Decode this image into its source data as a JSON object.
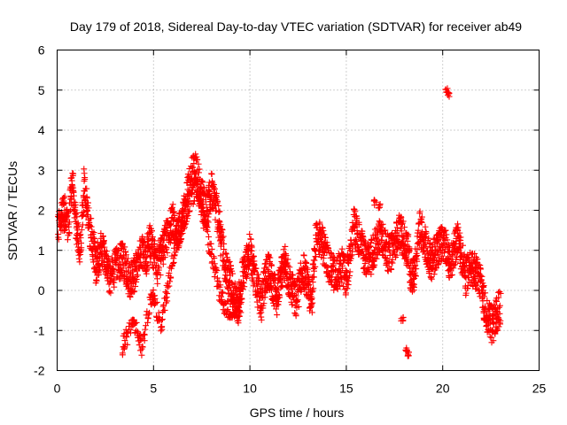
{
  "chart_data": {
    "type": "scatter",
    "title": "Day 179 of 2018, Sidereal Day-to-day VTEC variation (SDTVAR) for receiver ab49",
    "xlabel": "GPS time / hours",
    "ylabel": "SDTVAR / TECUs",
    "xlim": [
      0,
      25
    ],
    "ylim": [
      -2,
      6
    ],
    "x_ticks": [
      0,
      5,
      10,
      15,
      20,
      25
    ],
    "x_tick_labels": [
      "0",
      "5",
      "10",
      "15",
      "20",
      "25"
    ],
    "y_ticks": [
      -2,
      -1,
      0,
      1,
      2,
      3,
      4,
      5,
      6
    ],
    "y_tick_labels": [
      "-2",
      "-1",
      "0",
      "1",
      "2",
      "3",
      "4",
      "5",
      "6"
    ],
    "grid": true,
    "marker": "plus",
    "series_color": "#ff0000",
    "series": [
      {
        "name": "SDTVAR",
        "trace_x": [
          0.0,
          0.2,
          0.4,
          0.6,
          0.7,
          0.8,
          0.9,
          1.0,
          1.2,
          1.4,
          1.5,
          1.7,
          1.9,
          2.0,
          2.2,
          2.4,
          2.6,
          2.8,
          3.0,
          3.2,
          3.4,
          3.6,
          3.8,
          4.0,
          4.2,
          4.4,
          4.6,
          4.8,
          5.0,
          5.2,
          5.4,
          5.6,
          5.8,
          6.0,
          6.2,
          6.4,
          6.6,
          6.8,
          7.0,
          7.2,
          7.4,
          7.6,
          7.8,
          8.0,
          8.2,
          8.4,
          8.6,
          8.8,
          9.0,
          9.2,
          9.4,
          9.6,
          9.8,
          10.0,
          10.2,
          10.4,
          10.6,
          10.8,
          11.0,
          11.2,
          11.4,
          11.6,
          11.8,
          12.0,
          12.2,
          12.4,
          12.6,
          12.8,
          13.0,
          13.2,
          13.4,
          13.6,
          13.8,
          14.0,
          14.2,
          14.4,
          14.6,
          14.8,
          15.0,
          15.2,
          15.4,
          15.6,
          15.8,
          16.0,
          16.2,
          16.4,
          16.6,
          16.8,
          17.0,
          17.2,
          17.4,
          17.6,
          17.8,
          18.0,
          18.2,
          18.4,
          18.6,
          18.8,
          19.0,
          19.2,
          19.4,
          19.6,
          19.8,
          20.0,
          20.2,
          20.4,
          20.6,
          20.8,
          21.0,
          21.2,
          21.4,
          21.6,
          21.8,
          22.0,
          22.2,
          22.4,
          22.6,
          22.8,
          23.0
        ],
        "trace_y": [
          1.5,
          1.8,
          1.9,
          1.6,
          2.3,
          2.6,
          2.1,
          1.6,
          1.0,
          2.6,
          2.2,
          1.5,
          1.0,
          0.6,
          0.9,
          1.1,
          0.5,
          0.3,
          0.6,
          0.7,
          0.8,
          0.5,
          0.2,
          0.4,
          0.7,
          1.0,
          0.8,
          1.2,
          1.0,
          0.6,
          0.9,
          1.2,
          1.5,
          1.8,
          1.4,
          1.6,
          2.0,
          2.5,
          2.9,
          3.0,
          2.6,
          2.2,
          2.0,
          2.5,
          2.2,
          1.6,
          1.0,
          0.5,
          0.2,
          -0.2,
          -0.4,
          0.3,
          0.7,
          1.0,
          0.5,
          0.0,
          -0.3,
          0.3,
          0.5,
          0.1,
          -0.2,
          0.3,
          0.7,
          0.3,
          0.0,
          -0.3,
          0.2,
          0.5,
          0.1,
          -0.3,
          1.2,
          1.3,
          1.1,
          0.8,
          0.5,
          0.4,
          0.5,
          0.6,
          0.3,
          0.8,
          1.6,
          1.3,
          1.1,
          0.8,
          0.7,
          1.0,
          1.2,
          1.4,
          1.1,
          0.9,
          1.0,
          1.3,
          1.5,
          1.2,
          1.0,
          0.2,
          0.7,
          1.6,
          1.3,
          1.0,
          0.7,
          0.9,
          1.1,
          1.2,
          1.0,
          0.6,
          1.0,
          1.4,
          0.8,
          0.3,
          0.7,
          0.5,
          0.4,
          0.1,
          -0.5,
          -0.7,
          -0.9,
          -0.6,
          -0.4
        ],
        "low_branch_x": [
          3.4,
          3.6,
          3.8,
          4.0,
          4.2,
          4.4,
          4.6,
          4.8,
          5.0,
          5.2,
          5.4,
          5.6,
          5.8,
          6.0,
          6.2,
          6.4,
          6.6,
          6.8,
          7.0,
          7.2,
          7.4,
          7.6,
          7.8,
          8.0,
          8.2,
          8.4,
          8.6,
          8.8,
          9.0,
          9.2,
          9.4,
          9.6
        ],
        "low_branch_y": [
          -1.4,
          -1.2,
          -1.0,
          -0.9,
          -1.1,
          -1.5,
          -0.8,
          -0.4,
          -0.2,
          -0.6,
          -0.9,
          -0.3,
          0.2,
          0.8,
          1.2,
          1.5,
          1.8,
          2.1,
          2.3,
          2.6,
          2.2,
          1.8,
          1.3,
          0.9,
          0.5,
          0.0,
          -0.3,
          -0.5,
          -0.5,
          -0.4,
          -0.5,
          -0.4
        ],
        "isolated_x": [
          16.5,
          16.7,
          17.9,
          18.1,
          18.2,
          20.2,
          20.3
        ],
        "isolated_y": [
          2.2,
          2.1,
          -0.7,
          -1.5,
          -1.6,
          5.0,
          4.9
        ]
      }
    ]
  }
}
